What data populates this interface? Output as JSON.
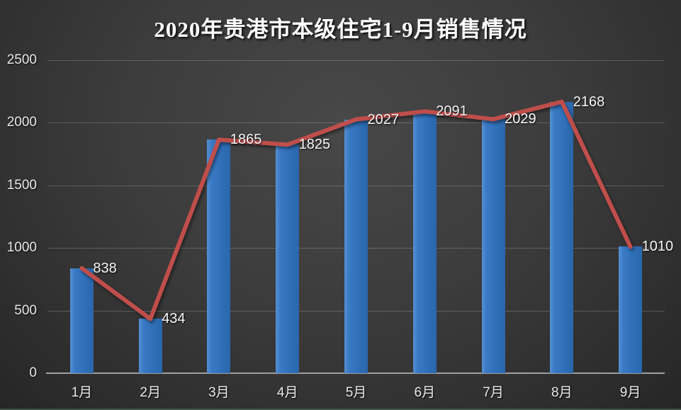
{
  "chart_data": {
    "type": "bar",
    "overlay_line": true,
    "title": "2020年贵港市本级住宅1-9月销售情况",
    "categories": [
      "1月",
      "2月",
      "3月",
      "4月",
      "5月",
      "6月",
      "7月",
      "8月",
      "9月"
    ],
    "values": [
      838,
      434,
      1865,
      1825,
      2027,
      2091,
      2029,
      2168,
      1010
    ],
    "yticks": [
      0,
      500,
      1000,
      1500,
      2000,
      2500
    ],
    "ylim": [
      0,
      2500
    ],
    "xlabel": "",
    "ylabel": "",
    "grid": true,
    "legend": false,
    "data_labels_visible": true,
    "data_label_position": "right"
  },
  "colors": {
    "background_center": "#484848",
    "background_edge": "#262626",
    "bar": "#3276c1",
    "line": "#bf4e4b",
    "gridline": "rgba(255,255,255,0.20)",
    "axis_line": "#a0a0a0",
    "axis_text": "#e8e8e8",
    "data_label_text": "#f5f5f5",
    "title_text": "#ffffff",
    "bottom_edge": "#43534a"
  }
}
